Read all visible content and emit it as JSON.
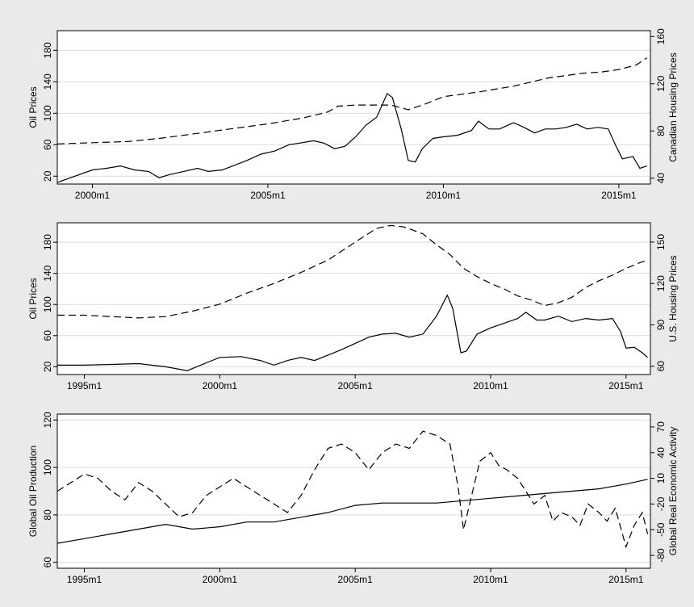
{
  "chart_data": [
    {
      "type": "line",
      "panel": "top",
      "xlim": [
        1999.0,
        2015.9
      ],
      "x_ticks": [
        {
          "value": 2000.0,
          "label": "2000m1"
        },
        {
          "value": 2005.0,
          "label": "2005m1"
        },
        {
          "value": 2010.0,
          "label": "2010m1"
        },
        {
          "value": 2015.0,
          "label": "2015m1"
        }
      ],
      "left_axis": {
        "label": "Oil Prices",
        "ylim": [
          10,
          205
        ],
        "ticks": [
          20,
          60,
          100,
          140,
          180
        ]
      },
      "right_axis": {
        "label": "Canadian Housing Prices",
        "ylim": [
          35,
          165
        ],
        "ticks": [
          40,
          80,
          120,
          160
        ]
      },
      "series": [
        {
          "axis": "left",
          "style": "solid",
          "x": [
            1999.0,
            1999.5,
            2000.0,
            2000.4,
            2000.8,
            2001.2,
            2001.6,
            2001.9,
            2002.2,
            2002.6,
            2003.0,
            2003.3,
            2003.7,
            2004.0,
            2004.4,
            2004.8,
            2005.2,
            2005.6,
            2005.9,
            2006.3,
            2006.6,
            2006.9,
            2007.2,
            2007.5,
            2007.8,
            2008.1,
            2008.4,
            2008.55,
            2008.8,
            2009.0,
            2009.2,
            2009.4,
            2009.7,
            2010.0,
            2010.4,
            2010.8,
            2011.0,
            2011.3,
            2011.6,
            2012.0,
            2012.3,
            2012.6,
            2012.9,
            2013.2,
            2013.5,
            2013.8,
            2014.1,
            2014.4,
            2014.7,
            2014.9,
            2015.1,
            2015.4,
            2015.6,
            2015.8
          ],
          "y": [
            12,
            20,
            28,
            30,
            33,
            28,
            26,
            18,
            22,
            26,
            30,
            26,
            28,
            33,
            40,
            48,
            52,
            60,
            62,
            65,
            62,
            55,
            58,
            70,
            85,
            95,
            125,
            120,
            80,
            40,
            38,
            55,
            68,
            70,
            72,
            78,
            90,
            80,
            80,
            88,
            82,
            75,
            80,
            80,
            82,
            86,
            80,
            82,
            80,
            60,
            42,
            45,
            30,
            33
          ]
        },
        {
          "axis": "right",
          "style": "dashed",
          "x": [
            1999.0,
            2000.0,
            2001.0,
            2002.0,
            2003.0,
            2004.0,
            2005.0,
            2006.0,
            2006.7,
            2007.0,
            2007.5,
            2008.0,
            2008.5,
            2009.0,
            2009.5,
            2010.0,
            2011.0,
            2012.0,
            2013.0,
            2014.0,
            2014.5,
            2015.0,
            2015.5,
            2015.8
          ],
          "y": [
            69,
            70,
            71,
            74,
            78,
            82,
            86,
            91,
            96,
            101,
            102,
            102,
            102,
            98,
            103,
            109,
            113,
            118,
            125,
            129,
            130,
            132,
            136,
            142
          ]
        }
      ]
    },
    {
      "type": "line",
      "panel": "middle",
      "xlim": [
        1994.0,
        2015.9
      ],
      "x_ticks": [
        {
          "value": 1995.0,
          "label": "1995m1"
        },
        {
          "value": 2000.0,
          "label": "2000m1"
        },
        {
          "value": 2005.0,
          "label": "2005m1"
        },
        {
          "value": 2010.0,
          "label": "2010m1"
        },
        {
          "value": 2015.0,
          "label": "2015m1"
        }
      ],
      "left_axis": {
        "label": "Oil Prices",
        "ylim": [
          10,
          205
        ],
        "ticks": [
          20,
          60,
          100,
          140,
          180
        ]
      },
      "right_axis": {
        "label": "U.S. Housing Prices",
        "ylim": [
          54,
          164
        ],
        "ticks": [
          60,
          90,
          120,
          150
        ]
      },
      "series": [
        {
          "axis": "left",
          "style": "solid",
          "x": [
            1994.0,
            1995.0,
            1996.0,
            1997.0,
            1998.0,
            1998.8,
            1999.5,
            2000.0,
            2000.8,
            2001.5,
            2002.0,
            2002.5,
            2003.0,
            2003.5,
            2004.0,
            2004.5,
            2005.0,
            2005.5,
            2006.0,
            2006.5,
            2007.0,
            2007.5,
            2008.0,
            2008.4,
            2008.6,
            2008.9,
            2009.1,
            2009.5,
            2010.0,
            2010.5,
            2011.0,
            2011.3,
            2011.7,
            2012.0,
            2012.5,
            2013.0,
            2013.5,
            2014.0,
            2014.5,
            2014.8,
            2015.0,
            2015.3,
            2015.6,
            2015.8
          ],
          "y": [
            22,
            22,
            23,
            24,
            20,
            15,
            25,
            32,
            33,
            28,
            22,
            28,
            32,
            28,
            35,
            42,
            50,
            58,
            62,
            63,
            58,
            62,
            85,
            112,
            95,
            38,
            40,
            62,
            70,
            76,
            82,
            90,
            80,
            80,
            85,
            78,
            82,
            80,
            82,
            65,
            44,
            45,
            38,
            32
          ]
        },
        {
          "axis": "right",
          "style": "dashed",
          "x": [
            1994.0,
            1995.0,
            1996.0,
            1997.0,
            1998.0,
            1999.0,
            2000.0,
            2001.0,
            2002.0,
            2003.0,
            2004.0,
            2005.0,
            2005.8,
            2006.3,
            2006.8,
            2007.5,
            2008.0,
            2008.5,
            2009.0,
            2009.5,
            2010.0,
            2010.5,
            2011.0,
            2011.5,
            2012.0,
            2012.5,
            2013.0,
            2013.5,
            2014.0,
            2014.5,
            2015.0,
            2015.5,
            2015.8
          ],
          "y": [
            97,
            97,
            96,
            95,
            96,
            100,
            105,
            113,
            120,
            128,
            137,
            150,
            160,
            162,
            161,
            156,
            148,
            141,
            131,
            125,
            120,
            116,
            111,
            108,
            104,
            106,
            110,
            117,
            122,
            126,
            131,
            135,
            137
          ]
        }
      ]
    },
    {
      "type": "line",
      "panel": "bottom",
      "xlim": [
        1994.0,
        2015.9
      ],
      "x_ticks": [
        {
          "value": 1995.0,
          "label": "1995m1"
        },
        {
          "value": 2000.0,
          "label": "2000m1"
        },
        {
          "value": 2005.0,
          "label": "2005m1"
        },
        {
          "value": 2010.0,
          "label": "2010m1"
        },
        {
          "value": 2015.0,
          "label": "2015m1"
        }
      ],
      "left_axis": {
        "label": "Global Oil Production",
        "ylim": [
          57.5,
          122.5
        ],
        "ticks": [
          60,
          80,
          100,
          120
        ]
      },
      "right_axis": {
        "label": "Global Real Economic Activity",
        "ylim": [
          -95,
          85
        ],
        "ticks": [
          -80,
          -50,
          -20,
          10,
          40,
          70
        ]
      },
      "series": [
        {
          "axis": "left",
          "style": "solid",
          "x": [
            1994.0,
            1995.0,
            1996.0,
            1997.0,
            1998.0,
            1999.0,
            2000.0,
            2001.0,
            2002.0,
            2003.0,
            2004.0,
            2005.0,
            2006.0,
            2007.0,
            2008.0,
            2009.0,
            2010.0,
            2011.0,
            2012.0,
            2013.0,
            2014.0,
            2015.0,
            2015.8
          ],
          "y": [
            68,
            70,
            72,
            74,
            76,
            74,
            75,
            77,
            77,
            79,
            81,
            84,
            85,
            85,
            85,
            86,
            87,
            88,
            89,
            90,
            91,
            93,
            95
          ]
        },
        {
          "axis": "right",
          "style": "dashed",
          "x": [
            1994.0,
            1994.5,
            1995.0,
            1995.5,
            1996.0,
            1996.5,
            1997.0,
            1997.5,
            1998.0,
            1998.5,
            1999.0,
            1999.5,
            2000.0,
            2000.5,
            2001.0,
            2001.5,
            2002.0,
            2002.5,
            2003.0,
            2003.5,
            2004.0,
            2004.5,
            2005.0,
            2005.5,
            2006.0,
            2006.5,
            2007.0,
            2007.5,
            2008.0,
            2008.5,
            2008.8,
            2009.0,
            2009.3,
            2009.6,
            2010.0,
            2010.3,
            2010.6,
            2011.0,
            2011.3,
            2011.6,
            2012.0,
            2012.3,
            2012.6,
            2013.0,
            2013.3,
            2013.6,
            2014.0,
            2014.3,
            2014.6,
            2015.0,
            2015.3,
            2015.6,
            2015.8
          ],
          "y": [
            -5,
            5,
            15,
            10,
            -5,
            -15,
            5,
            -5,
            -20,
            -35,
            -30,
            -10,
            0,
            10,
            0,
            -10,
            -20,
            -30,
            -10,
            20,
            45,
            50,
            40,
            20,
            40,
            50,
            45,
            65,
            60,
            50,
            0,
            -50,
            -10,
            30,
            40,
            25,
            20,
            10,
            -5,
            -20,
            -10,
            -40,
            -30,
            -35,
            -45,
            -20,
            -30,
            -40,
            -25,
            -70,
            -45,
            -30,
            -55
          ]
        }
      ]
    }
  ]
}
